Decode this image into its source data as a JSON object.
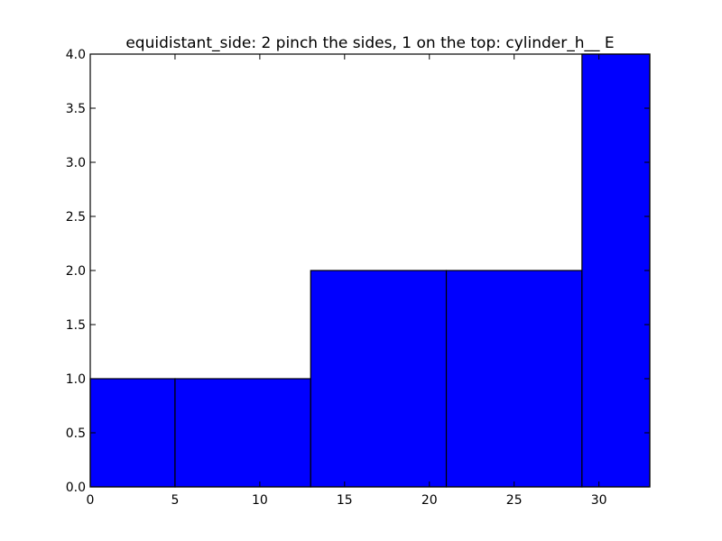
{
  "chart_data": {
    "type": "bar",
    "title": "equidistant_side: 2 pinch the sides, 1 on the top: cylinder_h__ E",
    "xlabel": "",
    "ylabel": "",
    "xlim": [
      0,
      33
    ],
    "ylim": [
      0,
      4
    ],
    "x_ticks": [
      "0",
      "5",
      "10",
      "15",
      "20",
      "25",
      "30"
    ],
    "y_ticks": [
      "0.0",
      "0.5",
      "1.0",
      "1.5",
      "2.0",
      "2.5",
      "3.0",
      "3.5",
      "4.0"
    ],
    "bins": [
      {
        "x0": 0,
        "x1": 5,
        "value": 1
      },
      {
        "x0": 5,
        "x1": 13,
        "value": 1
      },
      {
        "x0": 13,
        "x1": 21,
        "value": 2
      },
      {
        "x0": 21,
        "x1": 29,
        "value": 2
      },
      {
        "x0": 29,
        "x1": 33,
        "value": 4
      }
    ],
    "bar_color": "#0000ff",
    "edge_color": "#000000",
    "grid": false
  }
}
